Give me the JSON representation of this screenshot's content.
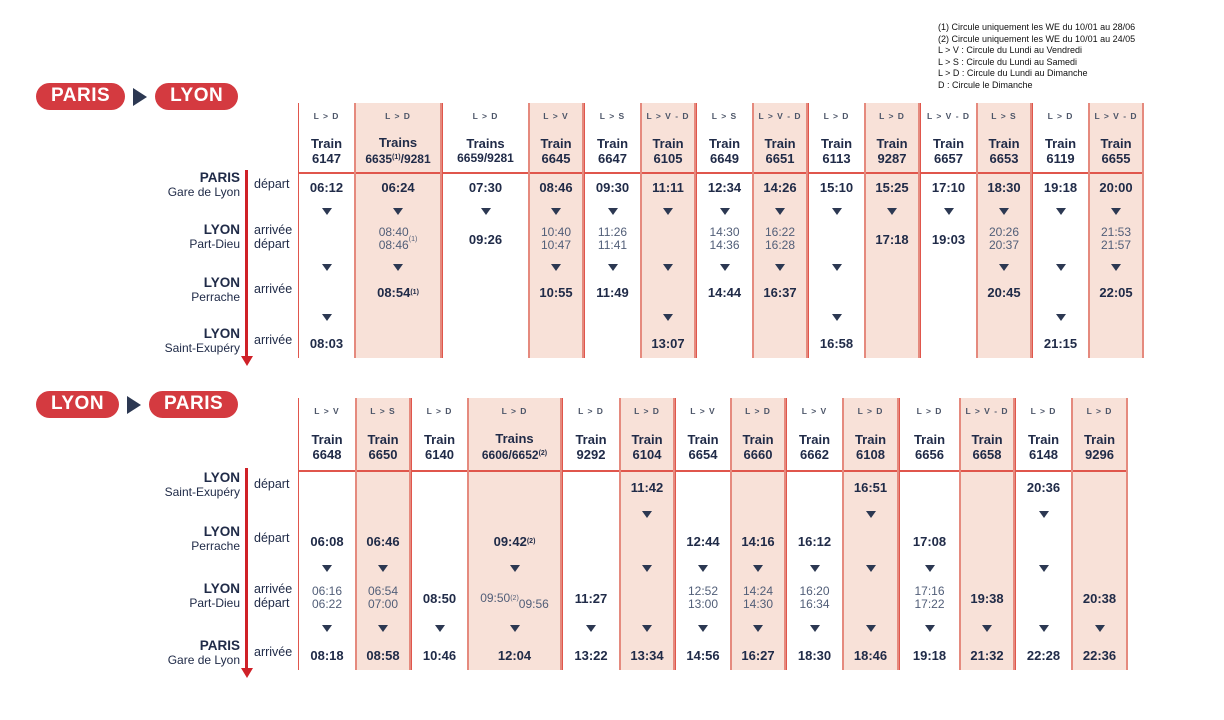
{
  "legend": {
    "lines": [
      "(1) Circule uniquement les WE du 10/01 au 28/06",
      "(2) Circule uniquement les WE du 10/01 au 24/05",
      "L > V : Circule du Lundi au Vendredi",
      "L > S : Circule du Lundi au Samedi",
      "L > D : Circule du Lundi au Dimanche",
      "D : Circule le Dimanche"
    ]
  },
  "colors": {
    "badge_red": "#d43a40",
    "table_line_red": "#e0564c",
    "pink_column_fill": "#f8e1d8",
    "navy_text": "#202b48",
    "direction_arrow_red": "#cf2128"
  },
  "routes": [
    {
      "badge_from": "PARIS",
      "badge_to": "LYON",
      "stations": [
        {
          "city": "PARIS",
          "name": "Gare de Lyon",
          "labels": [
            "départ"
          ]
        },
        {
          "city": "LYON",
          "name": "Part-Dieu",
          "labels": [
            "arrivée",
            "départ"
          ]
        },
        {
          "city": "LYON",
          "name": "Perrache",
          "labels": [
            "arrivée"
          ]
        },
        {
          "city": "LYON",
          "name": "Saint-Exupéry",
          "labels": [
            "arrivée"
          ]
        }
      ],
      "columns": [
        {
          "sched": "L > D",
          "prefix": "Train",
          "number": "6147",
          "pink": false,
          "cells": [
            "06:12",
            "▼",
            "",
            "▼",
            "",
            "▼",
            "08:03"
          ]
        },
        {
          "sched": "L > D",
          "prefix": "Trains",
          "number": "6635^(1)/9281",
          "pink": true,
          "cells": [
            "06:24",
            "▼",
            "08:40|08:46^(1)",
            "▼",
            "08:54^(1)",
            "",
            ""
          ]
        },
        {
          "sched": "L > D",
          "prefix": "Trains",
          "number": "6659/9281",
          "pink": false,
          "cells": [
            "07:30",
            "▼",
            "09:26",
            "",
            "",
            "",
            ""
          ]
        },
        {
          "sched": "L > V",
          "prefix": "Train",
          "number": "6645",
          "pink": true,
          "cells": [
            "08:46",
            "▼",
            "10:40|10:47",
            "▼",
            "10:55",
            "",
            ""
          ]
        },
        {
          "sched": "L > S",
          "prefix": "Train",
          "number": "6647",
          "pink": false,
          "cells": [
            "09:30",
            "▼",
            "11:26|11:41",
            "▼",
            "11:49",
            "",
            ""
          ]
        },
        {
          "sched": "L > V - D",
          "prefix": "Train",
          "number": "6105",
          "pink": true,
          "cells": [
            "11:11",
            "▼",
            "",
            "▼",
            "",
            "▼",
            "13:07"
          ]
        },
        {
          "sched": "L > S",
          "prefix": "Train",
          "number": "6649",
          "pink": false,
          "cells": [
            "12:34",
            "▼",
            "14:30|14:36",
            "▼",
            "14:44",
            "",
            ""
          ]
        },
        {
          "sched": "L > V - D",
          "prefix": "Train",
          "number": "6651",
          "pink": true,
          "cells": [
            "14:26",
            "▼",
            "16:22|16:28",
            "▼",
            "16:37",
            "",
            ""
          ]
        },
        {
          "sched": "L > D",
          "prefix": "Train",
          "number": "6113",
          "pink": false,
          "cells": [
            "15:10",
            "▼",
            "",
            "▼",
            "",
            "▼",
            "16:58"
          ]
        },
        {
          "sched": "L > D",
          "prefix": "Train",
          "number": "9287",
          "pink": true,
          "cells": [
            "15:25",
            "▼",
            "17:18",
            "",
            "",
            "",
            ""
          ]
        },
        {
          "sched": "L > V - D",
          "prefix": "Train",
          "number": "6657",
          "pink": false,
          "cells": [
            "17:10",
            "▼",
            "19:03",
            "",
            "",
            "",
            ""
          ]
        },
        {
          "sched": "L > S",
          "prefix": "Train",
          "number": "6653",
          "pink": true,
          "cells": [
            "18:30",
            "▼",
            "20:26|20:37",
            "▼",
            "20:45",
            "",
            ""
          ]
        },
        {
          "sched": "L > D",
          "prefix": "Train",
          "number": "6119",
          "pink": false,
          "cells": [
            "19:18",
            "▼",
            "",
            "▼",
            "",
            "▼",
            "21:15"
          ]
        },
        {
          "sched": "L > V - D",
          "prefix": "Train",
          "number": "6655",
          "pink": true,
          "cells": [
            "20:00",
            "▼",
            "21:53|21:57",
            "▼",
            "22:05",
            "",
            ""
          ]
        }
      ]
    },
    {
      "badge_from": "LYON",
      "badge_to": "PARIS",
      "stations": [
        {
          "city": "LYON",
          "name": "Saint-Exupéry",
          "labels": [
            "départ"
          ]
        },
        {
          "city": "LYON",
          "name": "Perrache",
          "labels": [
            "départ"
          ]
        },
        {
          "city": "LYON",
          "name": "Part-Dieu",
          "labels": [
            "arrivée",
            "départ"
          ]
        },
        {
          "city": "PARIS",
          "name": "Gare de Lyon",
          "labels": [
            "arrivée"
          ]
        }
      ],
      "columns": [
        {
          "sched": "L > V",
          "prefix": "Train",
          "number": "6648",
          "pink": false,
          "cells": [
            "",
            "",
            "06:08",
            "▼",
            "06:16|06:22",
            "▼",
            "08:18"
          ]
        },
        {
          "sched": "L > S",
          "prefix": "Train",
          "number": "6650",
          "pink": true,
          "cells": [
            "",
            "",
            "06:46",
            "▼",
            "06:54|07:00",
            "▼",
            "08:58"
          ]
        },
        {
          "sched": "L > D",
          "prefix": "Train",
          "number": "6140",
          "pink": false,
          "cells": [
            "",
            "",
            "",
            "",
            "08:50",
            "▼",
            "10:46"
          ]
        },
        {
          "sched": "L > D",
          "prefix": "Trains",
          "number": "6606/6652^(2)",
          "pink": true,
          "cells": [
            "",
            "",
            "09:42^(2)",
            "▼",
            "09:50^(2)|09:56",
            "▼",
            "12:04"
          ]
        },
        {
          "sched": "L > D",
          "prefix": "Train",
          "number": "9292",
          "pink": false,
          "cells": [
            "",
            "",
            "",
            "",
            "11:27",
            "▼",
            "13:22"
          ]
        },
        {
          "sched": "L > D",
          "prefix": "Train",
          "number": "6104",
          "pink": true,
          "cells": [
            "11:42",
            "▼",
            "",
            "▼",
            "",
            "▼",
            "13:34"
          ]
        },
        {
          "sched": "L > V",
          "prefix": "Train",
          "number": "6654",
          "pink": false,
          "cells": [
            "",
            "",
            "12:44",
            "▼",
            "12:52|13:00",
            "▼",
            "14:56"
          ]
        },
        {
          "sched": "L > D",
          "prefix": "Train",
          "number": "6660",
          "pink": true,
          "cells": [
            "",
            "",
            "14:16",
            "▼",
            "14:24|14:30",
            "▼",
            "16:27"
          ]
        },
        {
          "sched": "L > V",
          "prefix": "Train",
          "number": "6662",
          "pink": false,
          "cells": [
            "",
            "",
            "16:12",
            "▼",
            "16:20|16:34",
            "▼",
            "18:30"
          ]
        },
        {
          "sched": "L > D",
          "prefix": "Train",
          "number": "6108",
          "pink": true,
          "cells": [
            "16:51",
            "▼",
            "",
            "▼",
            "",
            "▼",
            "18:46"
          ]
        },
        {
          "sched": "L > D",
          "prefix": "Train",
          "number": "6656",
          "pink": false,
          "cells": [
            "",
            "",
            "17:08",
            "▼",
            "17:16|17:22",
            "▼",
            "19:18"
          ]
        },
        {
          "sched": "L > V - D",
          "prefix": "Train",
          "number": "6658",
          "pink": true,
          "cells": [
            "",
            "",
            "",
            "",
            "19:38",
            "▼",
            "21:32"
          ]
        },
        {
          "sched": "L > D",
          "prefix": "Train",
          "number": "6148",
          "pink": false,
          "cells": [
            "20:36",
            "▼",
            "",
            "▼",
            "",
            "▼",
            "22:28"
          ]
        },
        {
          "sched": "L > D",
          "prefix": "Train",
          "number": "9296",
          "pink": true,
          "cells": [
            "",
            "",
            "",
            "",
            "20:38",
            "▼",
            "22:36"
          ]
        }
      ]
    }
  ]
}
